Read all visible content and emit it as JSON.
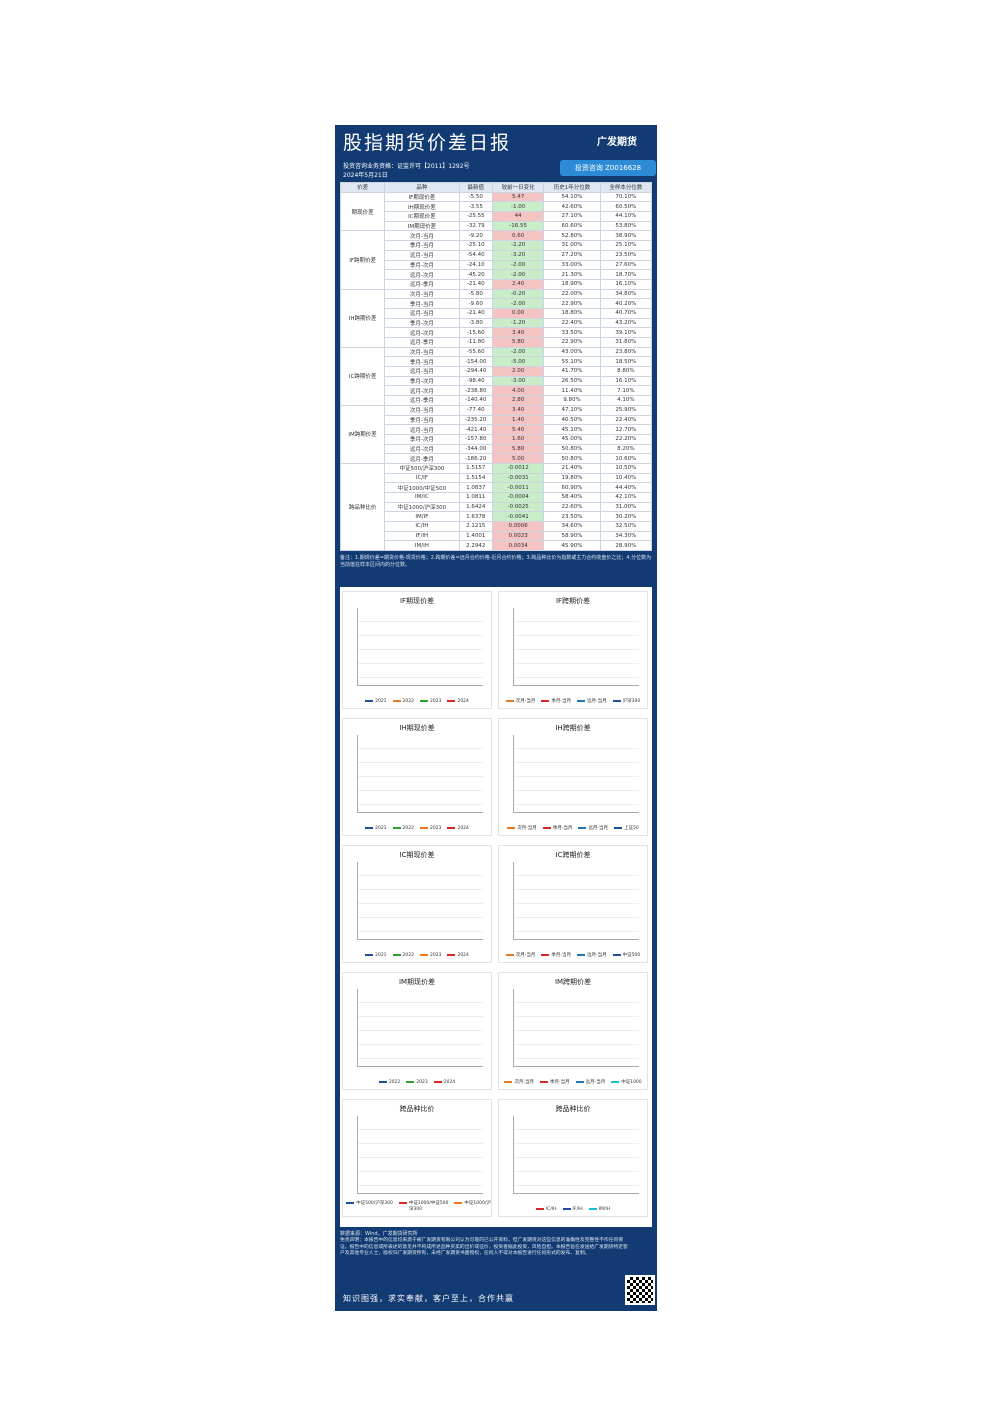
{
  "header": {
    "title": "股指期货价差日报",
    "logo": "广发期货",
    "license": "投资咨询业务资格：证监许可【2011】1292号",
    "date": "2024年5月21日",
    "badge": "投资咨询 Z0016628"
  },
  "table": {
    "columns": [
      "价差",
      "品种",
      "最新值",
      "较前一日变化",
      "历史1年分位数",
      "全样本分位数"
    ],
    "groups": [
      {
        "name": "期现价差",
        "rows": [
          [
            "IF期现价差",
            "-5.50",
            "5.47",
            "54.10%",
            "70.10%"
          ],
          [
            "IH期现价差",
            "-3.55",
            "-1.00",
            "42.60%",
            "60.50%"
          ],
          [
            "IC期现价差",
            "-25.55",
            "44",
            "27.10%",
            "44.10%"
          ],
          [
            "IM期现价差",
            "-32.79",
            "-16.55",
            "60.60%",
            "53.80%"
          ]
        ]
      },
      {
        "name": "IF跨期价差",
        "rows": [
          [
            "次月-当月",
            "-9.20",
            "0.60",
            "52.80%",
            "38.90%"
          ],
          [
            "季月-当月",
            "-25.10",
            "-2.20",
            "31.00%",
            "25.10%"
          ],
          [
            "远月-当月",
            "-54.40",
            "-3.20",
            "27.20%",
            "23.50%"
          ],
          [
            "季月-次月",
            "-24.10",
            "-2.00",
            "33.00%",
            "27.60%"
          ],
          [
            "远月-次月",
            "-45.20",
            "-2.00",
            "21.30%",
            "18.70%"
          ],
          [
            "远月-季月",
            "-21.40",
            "2.40",
            "18.90%",
            "16.10%"
          ]
        ]
      },
      {
        "name": "IH跨期价差",
        "rows": [
          [
            "次月-当月",
            "-5.80",
            "-0.20",
            "22.00%",
            "34.80%"
          ],
          [
            "季月-当月",
            "-9.60",
            "-2.00",
            "22.90%",
            "40.20%"
          ],
          [
            "远月-当月",
            "-21.40",
            "0.00",
            "18.80%",
            "40.70%"
          ],
          [
            "季月-次月",
            "-3.80",
            "-1.20",
            "22.40%",
            "43.20%"
          ],
          [
            "远月-次月",
            "-15.60",
            "3.40",
            "33.50%",
            "39.10%"
          ],
          [
            "远月-季月",
            "-11.80",
            "5.80",
            "22.90%",
            "31.80%"
          ]
        ]
      },
      {
        "name": "IC跨期价差",
        "rows": [
          [
            "次月-当月",
            "-55.60",
            "-2.00",
            "43.00%",
            "23.80%"
          ],
          [
            "季月-当月",
            "-154.00",
            "-5.00",
            "55.10%",
            "18.50%"
          ],
          [
            "远月-当月",
            "-294.40",
            "2.00",
            "41.70%",
            "8.80%"
          ],
          [
            "季月-次月",
            "-98.40",
            "-3.00",
            "26.50%",
            "16.10%"
          ],
          [
            "远月-次月",
            "-238.80",
            "4.00",
            "11.40%",
            "7.10%"
          ],
          [
            "远月-季月",
            "-140.40",
            "2.80",
            "9.80%",
            "4.10%"
          ]
        ]
      },
      {
        "name": "IM跨期价差",
        "rows": [
          [
            "次月-当月",
            "-77.40",
            "3.40",
            "47.10%",
            "25.90%"
          ],
          [
            "季月-当月",
            "-235.20",
            "1.40",
            "40.50%",
            "22.40%"
          ],
          [
            "远月-当月",
            "-421.40",
            "5.40",
            "45.10%",
            "12.70%"
          ],
          [
            "季月-次月",
            "-157.80",
            "1.60",
            "45.00%",
            "22.20%"
          ],
          [
            "远月-次月",
            "-344.00",
            "5.80",
            "50.80%",
            "8.20%"
          ],
          [
            "远月-季月",
            "-186.20",
            "5.00",
            "50.80%",
            "10.60%"
          ]
        ]
      },
      {
        "name": "跨品种比价",
        "rows": [
          [
            "中证500/沪深300",
            "1.5157",
            "-0.0012",
            "21.40%",
            "10.50%"
          ],
          [
            "IC/IF",
            "1.5154",
            "-0.0031",
            "19.80%",
            "10.40%"
          ],
          [
            "中证1000/中证500",
            "1.0837",
            "-0.0011",
            "60.90%",
            "44.40%"
          ],
          [
            "IM/IC",
            "1.0811",
            "-0.0004",
            "58.40%",
            "42.10%"
          ],
          [
            "中证1000/沪深300",
            "1.6424",
            "-0.0025",
            "22.60%",
            "31.00%"
          ],
          [
            "IM/IF",
            "1.6378",
            "-0.0041",
            "23.50%",
            "30.20%"
          ],
          [
            "IC/IH",
            "2.1215",
            "0.0006",
            "34.60%",
            "32.50%"
          ],
          [
            "IF/IH",
            "1.4001",
            "0.0023",
            "58.90%",
            "34.30%"
          ],
          [
            "IM/IH",
            "2.2942",
            "0.0034",
            "45.90%",
            "28.90%"
          ]
        ]
      }
    ]
  },
  "note": "备注：1.期现价差=期货价格-现货价格；2.跨期价差=远月合约价格-近月合约价格；3.跨品种比价为指数或主力合约收盘价之比；4.分位数为当前值在样本区间内的分位数。",
  "charts": [
    {
      "title": "IF期现价差",
      "legend": [
        [
          "2021",
          "#1f4e9c"
        ],
        [
          "2022",
          "#e87722"
        ],
        [
          "2023",
          "#2ca02c"
        ],
        [
          "2024",
          "#d62728"
        ]
      ]
    },
    {
      "title": "IF跨期价差",
      "legend": [
        [
          "次月-当月",
          "#e87722"
        ],
        [
          "季月-当月",
          "#d62728"
        ],
        [
          "远月-当月",
          "#1f77b4"
        ],
        [
          "沪深300",
          "#1f4e9c"
        ]
      ]
    },
    {
      "title": "IH期现价差",
      "legend": [
        [
          "2021",
          "#1f4e9c"
        ],
        [
          "2022",
          "#2ca02c"
        ],
        [
          "2023",
          "#e87722"
        ],
        [
          "2024",
          "#d62728"
        ]
      ]
    },
    {
      "title": "IH跨期价差",
      "legend": [
        [
          "次月-当月",
          "#e87722"
        ],
        [
          "季月-当月",
          "#d62728"
        ],
        [
          "远月-当月",
          "#1f77b4"
        ],
        [
          "上证50",
          "#1f4e9c"
        ]
      ]
    },
    {
      "title": "IC期现价差",
      "legend": [
        [
          "2021",
          "#1f4e9c"
        ],
        [
          "2022",
          "#2ca02c"
        ],
        [
          "2023",
          "#e87722"
        ],
        [
          "2024",
          "#d62728"
        ]
      ]
    },
    {
      "title": "IC跨期价差",
      "legend": [
        [
          "次月-当月",
          "#e87722"
        ],
        [
          "季月-当月",
          "#d62728"
        ],
        [
          "远月-当月",
          "#1f77b4"
        ],
        [
          "中证500",
          "#1f4e9c"
        ]
      ]
    },
    {
      "title": "IM期现价差",
      "legend": [
        [
          "2022",
          "#1f4e9c"
        ],
        [
          "2023",
          "#2ca02c"
        ],
        [
          "2024",
          "#d62728"
        ]
      ]
    },
    {
      "title": "IM跨期价差",
      "legend": [
        [
          "次月-当月",
          "#e87722"
        ],
        [
          "季月-当月",
          "#d62728"
        ],
        [
          "远月-当月",
          "#1f77b4"
        ],
        [
          "中证1000",
          "#17becf"
        ]
      ]
    },
    {
      "title": "跨品种比价",
      "legend": [
        [
          "中证500/沪深300",
          "#1f4e9c"
        ],
        [
          "中证1000/中证500",
          "#d62728"
        ],
        [
          "中证1000/沪深300",
          "#e87722"
        ]
      ]
    },
    {
      "title": "跨品种比价",
      "legend": [
        [
          "IC/IH",
          "#d62728"
        ],
        [
          "IF/IH",
          "#1f4e9c"
        ],
        [
          "IM/IH",
          "#17becf"
        ]
      ]
    }
  ],
  "source": "数据来源：Wind，广发期货研究所",
  "disclaimer": "免责声明：本报告中的信息均来源于被广发期货有限公司认为可靠的已公开资料，但广发期货对这些信息的准确性及完整性不作任何保证。报告中的信息或所表述的意见并不构成所述品种买卖的出价或征价，投资者据此投资，风险自担。本报告旨在发送给广发期货特定客户及其他专业人士，版权归广发期货所有，未经广发期货书面授权，任何人不得对本报告进行任何形式的发布、复制。",
  "slogan": "知识图强，求实奉献，客户至上，合作共赢"
}
